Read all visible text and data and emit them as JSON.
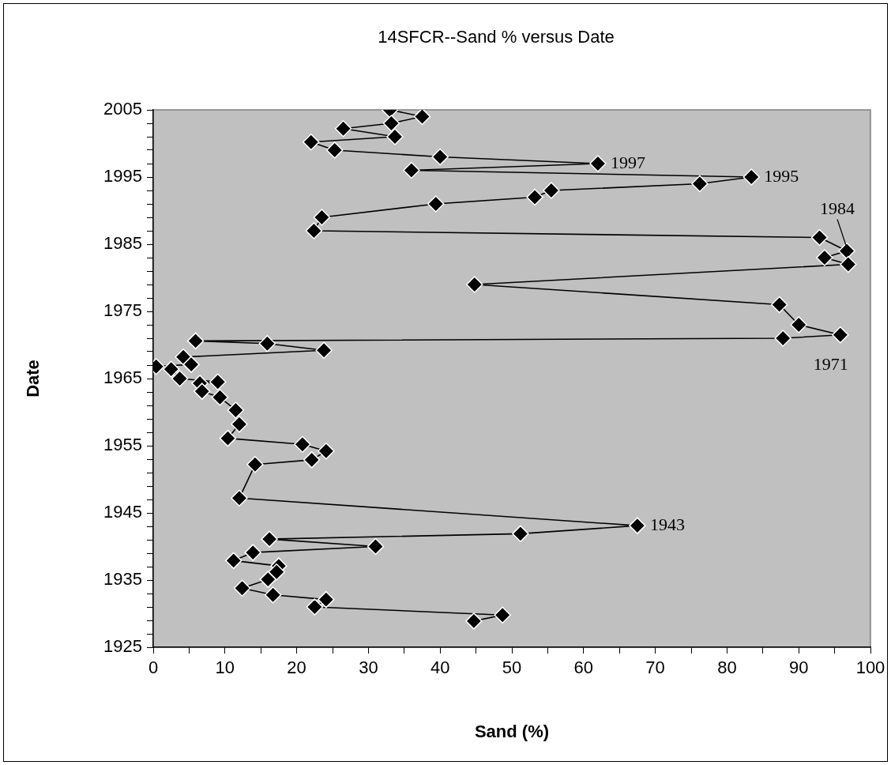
{
  "chart_data": {
    "type": "line",
    "title": "14SFCR--Sand % versus Date",
    "xlabel": "Sand (%)",
    "ylabel": "Date",
    "x": [
      33.0,
      37.5,
      33.2,
      26.5,
      33.7,
      22.0,
      25.3,
      40.0,
      62.0,
      36.0,
      83.4,
      76.2,
      55.5,
      53.2,
      39.4,
      23.5,
      22.4,
      92.9,
      96.7,
      93.6,
      96.9,
      44.8,
      87.3,
      90.0,
      95.8,
      87.8,
      5.9,
      15.9,
      23.8,
      4.2,
      5.3,
      0.4,
      2.5,
      3.7,
      9.0,
      6.5,
      6.8,
      9.3,
      11.5,
      12.0,
      10.4,
      20.8,
      24.1,
      22.1,
      14.2,
      12.0,
      67.5,
      51.2,
      16.2,
      31.0,
      13.9,
      11.2,
      17.5,
      17.2,
      16.0,
      12.4,
      16.7,
      24.1,
      22.5,
      48.7,
      44.7
    ],
    "values": [
      2005,
      2004,
      2003,
      2002.2,
      2001,
      2000.2,
      1999,
      1998,
      1997,
      1996,
      1995,
      1994,
      1993,
      1992,
      1991,
      1989,
      1987,
      1986,
      1984,
      1983,
      1982,
      1979,
      1976,
      1973,
      1971.5,
      1971,
      1970.6,
      1970.2,
      1969.2,
      1968.2,
      1967.1,
      1966.8,
      1966.4,
      1965,
      1964.5,
      1964.3,
      1963.1,
      1962.2,
      1960.3,
      1958.2,
      1956.1,
      1955.2,
      1954.2,
      1952.9,
      1952.2,
      1947.2,
      1943.1,
      1941.9,
      1941.1,
      1940,
      1939.1,
      1937.9,
      1937.1,
      1936.2,
      1935.1,
      1933.8,
      1932.8,
      1932.1,
      1931,
      1929.8,
      1928.9
    ],
    "color": "#000000",
    "marker": "diamond",
    "line_style": "solid",
    "grid": false,
    "legend": false,
    "xlim": [
      0,
      100
    ],
    "xticks": [
      0,
      {
        "value": 5,
        "label": null
      },
      10,
      {
        "value": 15,
        "label": null
      },
      20,
      {
        "value": 25,
        "label": null
      },
      30,
      {
        "value": 35,
        "label": null
      },
      40,
      {
        "value": 45,
        "label": null
      },
      50,
      {
        "value": 55,
        "label": null
      },
      60,
      {
        "value": 65,
        "label": null
      },
      70,
      {
        "value": 75,
        "label": null
      },
      80,
      {
        "value": 85,
        "label": null
      },
      90,
      {
        "value": 95,
        "label": null
      },
      100
    ],
    "ylim": [
      1925,
      2005
    ],
    "yticks": [
      1925,
      {
        "value": 1927,
        "label": null
      },
      {
        "value": 1929,
        "label": null
      },
      {
        "value": 1931,
        "label": null
      },
      {
        "value": 1933,
        "label": null
      },
      1935,
      {
        "value": 1937,
        "label": null
      },
      {
        "value": 1939,
        "label": null
      },
      {
        "value": 1941,
        "label": null
      },
      {
        "value": 1943,
        "label": null
      },
      1945,
      {
        "value": 1947,
        "label": null
      },
      {
        "value": 1949,
        "label": null
      },
      {
        "value": 1951,
        "label": null
      },
      {
        "value": 1953,
        "label": null
      },
      1955,
      {
        "value": 1957,
        "label": null
      },
      {
        "value": 1959,
        "label": null
      },
      {
        "value": 1961,
        "label": null
      },
      {
        "value": 1963,
        "label": null
      },
      1965,
      {
        "value": 1967,
        "label": null
      },
      {
        "value": 1969,
        "label": null
      },
      {
        "value": 1971,
        "label": null
      },
      {
        "value": 1973,
        "label": null
      },
      1975,
      {
        "value": 1977,
        "label": null
      },
      {
        "value": 1979,
        "label": null
      },
      {
        "value": 1981,
        "label": null
      },
      {
        "value": 1983,
        "label": null
      },
      1985,
      {
        "value": 1987,
        "label": null
      },
      {
        "value": 1989,
        "label": null
      },
      {
        "value": 1991,
        "label": null
      },
      {
        "value": 1993,
        "label": null
      },
      1995,
      {
        "value": 1997,
        "label": null
      },
      {
        "value": 1999,
        "label": null
      },
      {
        "value": 2001,
        "label": null
      },
      {
        "value": 2003,
        "label": null
      },
      2005
    ],
    "annotations": [
      {
        "text": "1997",
        "x": 62.0,
        "y": 1997
      },
      {
        "text": "1995",
        "x": 83.4,
        "y": 1995
      },
      {
        "text": "1984",
        "x": 96.7,
        "y": 1984
      },
      {
        "text": "1943",
        "x": 67.5,
        "y": 1943.1
      },
      {
        "text": "1971",
        "x": 95.8,
        "y": 1971.5
      }
    ]
  }
}
